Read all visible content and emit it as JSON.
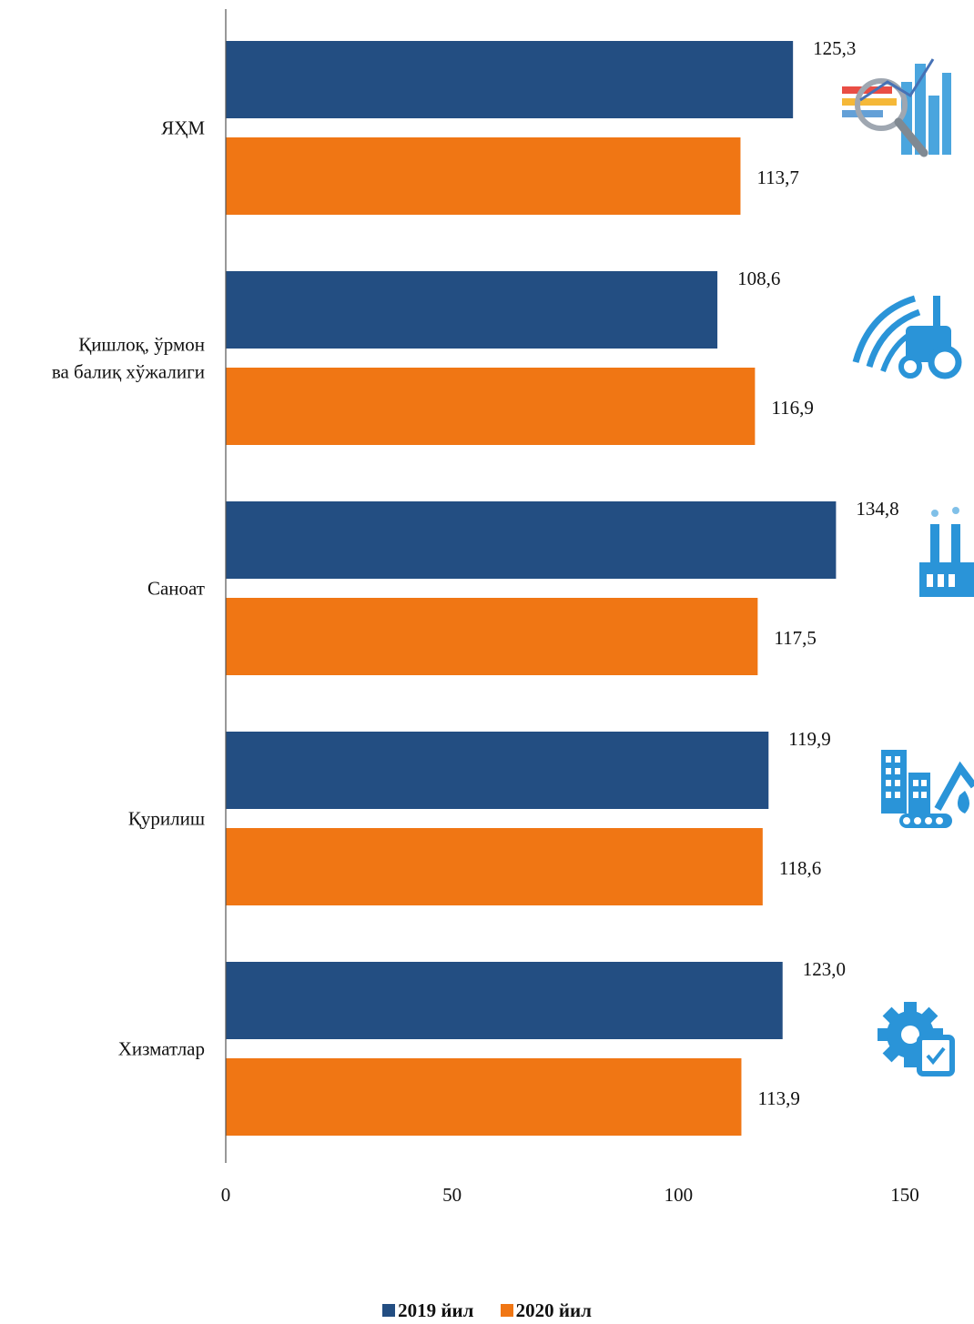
{
  "chart_data": {
    "type": "bar",
    "orientation": "horizontal",
    "title": "",
    "xlabel": "",
    "ylabel": "",
    "categories": [
      "ЯҲМ",
      "Қишлоқ, ўрмон ва балиқ хўжалиги",
      "Саноат",
      "Қурилиш",
      "Хизматлар"
    ],
    "category_lines": [
      [
        "ЯҲМ"
      ],
      [
        "Қишлоқ, ўрмон",
        "ва балиқ хўжалиги"
      ],
      [
        "Саноат"
      ],
      [
        "Қурилиш"
      ],
      [
        "Хизматлар"
      ]
    ],
    "series": [
      {
        "name": "2019 йил",
        "color": "#234e82",
        "values": [
          125.3,
          108.6,
          134.8,
          119.9,
          123.0
        ],
        "labels": [
          "125,3",
          "108,6",
          "134,8",
          "119,9",
          "123,0"
        ]
      },
      {
        "name": "2020 йил",
        "color": "#f07614",
        "values": [
          113.7,
          116.9,
          117.5,
          118.6,
          113.9
        ],
        "labels": [
          "113,7",
          "116,9",
          "117,5",
          "118,6",
          "113,9"
        ]
      }
    ],
    "xlim": [
      0,
      150
    ],
    "xticks": [
      0,
      50,
      100,
      150
    ],
    "xtick_labels": [
      "0",
      "50",
      "100",
      "150"
    ],
    "grid": false,
    "legend_position": "bottom",
    "icons": [
      "chart-analytics-icon",
      "tractor-agriculture-icon",
      "factory-icon",
      "construction-excavator-icon",
      "gear-checklist-icon"
    ],
    "icon_color": "#1f8fd6"
  }
}
